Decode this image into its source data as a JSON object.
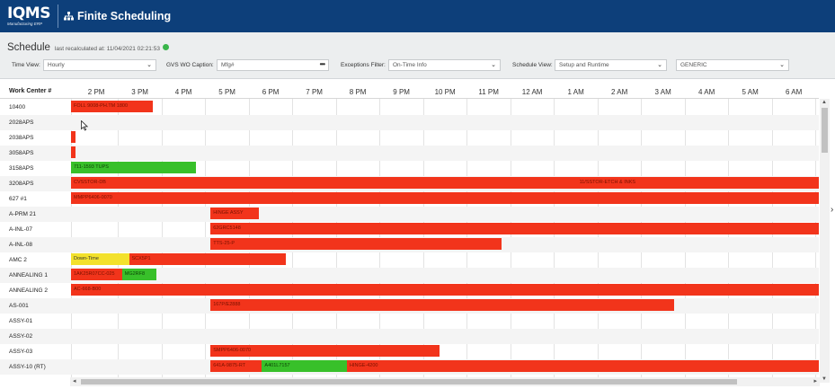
{
  "app": {
    "logo": "IQMS",
    "logo_sub": "Manufacturing ERP",
    "title": "Finite Scheduling"
  },
  "schedule": {
    "title": "Schedule",
    "recalc": "last recalculated at:  11/04/2021 02:21:53"
  },
  "filters": {
    "time_view_label": "Time View:",
    "time_view_value": "Hourly",
    "gvs_label": "GVS WO Caption:",
    "gvs_value": "Mfg#",
    "exceptions_label": "Exceptions Filter:",
    "exceptions_value": "On-Time Info",
    "sched_view_label": "Schedule View:",
    "sched_view_value": "Setup and Runtime",
    "generic_value": "GENERIC"
  },
  "grid": {
    "work_center_header": "Work Center #",
    "hours": [
      "2 PM",
      "3 PM",
      "4 PM",
      "5 PM",
      "6 PM",
      "7 PM",
      "8 PM",
      "9 PM",
      "10 PM",
      "11 PM",
      "12 AM",
      "1 AM",
      "2 AM",
      "3 AM",
      "4 AM",
      "5 AM",
      "6 AM"
    ],
    "rows": [
      {
        "label": "10400",
        "bars": [
          {
            "start": 0,
            "end": 1.87,
            "color": "red",
            "text": "FOLL  9008-PH.TM  1800"
          }
        ]
      },
      {
        "label": "2028APS",
        "bars": []
      },
      {
        "label": "2038APS",
        "bars": [
          {
            "start": 0,
            "end": 0.1,
            "color": "red",
            "text": ""
          }
        ]
      },
      {
        "label": "3058APS",
        "bars": [
          {
            "start": 0,
            "end": 0.1,
            "color": "red",
            "text": ""
          }
        ]
      },
      {
        "label": "3158APS",
        "bars": [
          {
            "start": 0,
            "end": 2.86,
            "color": "green",
            "text": "711-1593 TUPS"
          }
        ]
      },
      {
        "label": "3208APS",
        "bars": [
          {
            "start": 0,
            "end": 11.6,
            "color": "red",
            "text": "CVSSTOR-DB"
          },
          {
            "start": 11.6,
            "end": 17.4,
            "color": "red",
            "text": "11/SSTOR-ETCH & INKS"
          }
        ]
      },
      {
        "label": "627 #1",
        "bars": [
          {
            "start": 0,
            "end": 17.4,
            "color": "red",
            "text": "MMPP6406-0070"
          }
        ]
      },
      {
        "label": "A-PRM 21",
        "bars": [
          {
            "start": 3.2,
            "end": 4.3,
            "color": "red",
            "text": "HINGE ASSY"
          }
        ]
      },
      {
        "label": "A-INL-07",
        "bars": [
          {
            "start": 3.2,
            "end": 17.4,
            "color": "red",
            "text": "62GRC5148"
          }
        ]
      },
      {
        "label": "A-INL-08",
        "bars": [
          {
            "start": 3.2,
            "end": 9.88,
            "color": "red",
            "text": "TTS-25-P"
          }
        ]
      },
      {
        "label": "AMC 2",
        "bars": [
          {
            "start": 0,
            "end": 1.33,
            "color": "yellow",
            "text": "Down-Time"
          },
          {
            "start": 1.33,
            "end": 4.92,
            "color": "red",
            "text": "SCX5P1"
          }
        ]
      },
      {
        "label": "ANNEALING 1",
        "bars": [
          {
            "start": 0,
            "end": 1.17,
            "color": "red",
            "text": "1AK25R07CC-025"
          },
          {
            "start": 1.17,
            "end": 1.95,
            "color": "green",
            "text": "MG2RF8"
          }
        ]
      },
      {
        "label": "ANNEALING 2",
        "bars": [
          {
            "start": 0,
            "end": 17.4,
            "color": "red",
            "text": "AC-668-B00"
          }
        ]
      },
      {
        "label": "AS-001",
        "bars": [
          {
            "start": 3.2,
            "end": 13.84,
            "color": "red",
            "text": "167P/E2888"
          }
        ]
      },
      {
        "label": "ASSY-01",
        "bars": []
      },
      {
        "label": "ASSY-02",
        "bars": []
      },
      {
        "label": "ASSY-03",
        "bars": [
          {
            "start": 3.2,
            "end": 8.45,
            "color": "red",
            "text": "SMPP6406-0070"
          }
        ]
      },
      {
        "label": "ASSY-10 (RT)",
        "bars": [
          {
            "start": 3.2,
            "end": 4.38,
            "color": "red",
            "text": "641A-9875-RT"
          },
          {
            "start": 4.38,
            "end": 6.33,
            "color": "green",
            "text": "A401L7157"
          },
          {
            "start": 6.33,
            "end": 17.4,
            "color": "red",
            "text": "HINGE-4200"
          }
        ]
      }
    ]
  },
  "colors": {
    "red": "#f2341b",
    "green": "#38c02a",
    "yellow": "#f3e12c",
    "topbar": "#0d3f7a"
  }
}
